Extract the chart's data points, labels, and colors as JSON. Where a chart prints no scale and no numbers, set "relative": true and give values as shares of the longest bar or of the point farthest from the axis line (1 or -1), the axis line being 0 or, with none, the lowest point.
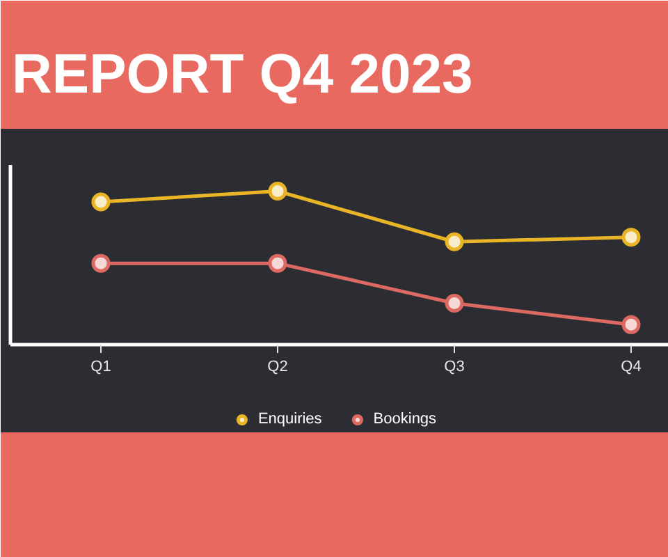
{
  "chart_data": {
    "type": "line",
    "title": "REPORT Q4 2023",
    "categories": [
      "Q1",
      "Q2",
      "Q3",
      "Q4"
    ],
    "relative": true,
    "series": [
      {
        "name": "Enquiries",
        "color": "#e9b527",
        "values": [
          0.93,
          1,
          0.67,
          0.7
        ]
      },
      {
        "name": "Bookings",
        "color": "#dd6a62",
        "values": [
          0.53,
          0.53,
          0.27,
          0.13
        ]
      }
    ],
    "legend": "bottom",
    "marker": "circle",
    "grid": false
  }
}
